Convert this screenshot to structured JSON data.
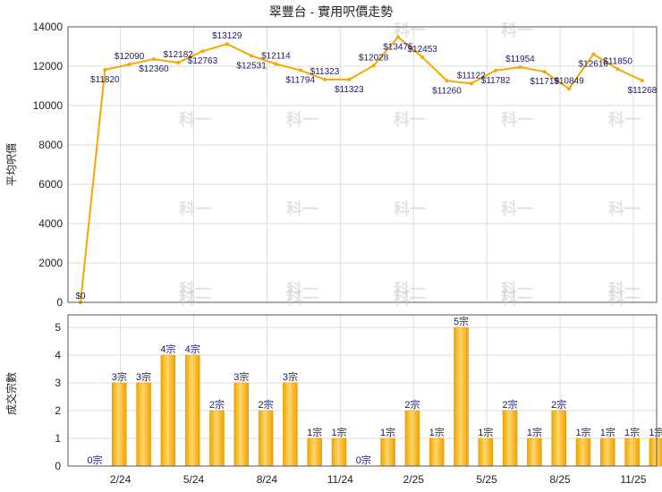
{
  "chart_data": [
    {
      "type": "line",
      "title": "翠豐台 - 實用呎價走勢",
      "ylabel": "平均呎價",
      "ylim": [
        0,
        14000
      ],
      "yticks": [
        0,
        2000,
        4000,
        6000,
        8000,
        10000,
        12000,
        14000
      ],
      "color": "#f5a800",
      "values": [
        0,
        11820,
        12090,
        12360,
        12182,
        12763,
        13129,
        12531,
        12114,
        11794,
        11323,
        11323,
        12028,
        13475,
        12453,
        11260,
        11122,
        11782,
        11954,
        11719,
        10849,
        12610,
        11850,
        11268
      ],
      "labels": [
        "$0",
        "$11820",
        "$12090",
        "$12360",
        "$12182",
        "$12763",
        "$13129",
        "$12531",
        "$12114",
        "$11794",
        "$11323",
        "$11323",
        "$12028",
        "$13475",
        "$12453",
        "$11260",
        "$11122",
        "$11782",
        "$11954",
        "$11719",
        "$10849",
        "$12610",
        "$11850",
        "$11268"
      ]
    },
    {
      "type": "bar",
      "ylabel": "成交宗數",
      "ylim": [
        0,
        5
      ],
      "yticks": [
        0,
        1,
        2,
        3,
        4,
        5
      ],
      "color": "#f5a800",
      "values": [
        0,
        3,
        3,
        4,
        4,
        2,
        3,
        2,
        3,
        1,
        1,
        0,
        1,
        2,
        1,
        5,
        1,
        2,
        1,
        2,
        1,
        1,
        1,
        1
      ],
      "labels": [
        "0宗",
        "3宗",
        "3宗",
        "4宗",
        "4宗",
        "2宗",
        "3宗",
        "2宗",
        "3宗",
        "1宗",
        "1宗",
        "0宗",
        "1宗",
        "2宗",
        "1宗",
        "5宗",
        "1宗",
        "2宗",
        "1宗",
        "2宗",
        "1宗",
        "1宗",
        "1宗",
        "1宗"
      ],
      "xticks": [
        "2/24",
        "5/24",
        "8/24",
        "11/24",
        "2/25",
        "5/25",
        "8/25",
        "11/25"
      ]
    }
  ],
  "watermark": "科一"
}
